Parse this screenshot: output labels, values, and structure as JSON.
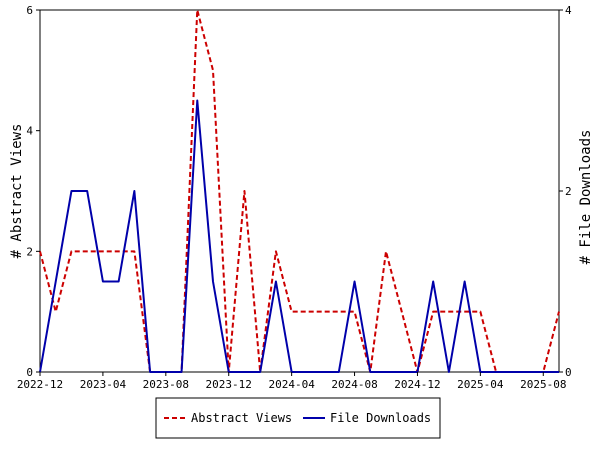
{
  "chart_data": {
    "type": "line",
    "title": "",
    "x": [
      "2022-12",
      "2023-01",
      "2023-02",
      "2023-03",
      "2023-04",
      "2023-05",
      "2023-06",
      "2023-07",
      "2023-08",
      "2023-09",
      "2023-10",
      "2023-11",
      "2023-12",
      "2024-01",
      "2024-02",
      "2024-03",
      "2024-04",
      "2024-05",
      "2024-06",
      "2024-07",
      "2024-08",
      "2024-09",
      "2024-10",
      "2024-11",
      "2024-12",
      "2025-01",
      "2025-02",
      "2025-03",
      "2025-04",
      "2025-05",
      "2025-06",
      "2025-07",
      "2025-08",
      "2025-09"
    ],
    "x_tick_labels": [
      "2022-12",
      "2023-04",
      "2023-08",
      "2023-12",
      "2024-04",
      "2024-08",
      "2024-12",
      "2025-04",
      "2025-08"
    ],
    "ylabel_left": "# Abstract Views",
    "ylabel_right": "# File Downloads",
    "ylim_left": [
      0,
      6
    ],
    "ylim_right": [
      0,
      4
    ],
    "yticks_left": [
      0,
      2,
      4,
      6
    ],
    "yticks_right": [
      0,
      2,
      4
    ],
    "grid": false,
    "legend_position": "bottom-center",
    "series": [
      {
        "name": "Abstract Views",
        "axis": "left",
        "color": "#cc0000",
        "style": "dashed",
        "values": [
          2,
          1,
          2,
          2,
          2,
          2,
          2,
          0,
          0,
          0,
          6,
          5,
          0,
          3,
          0,
          2,
          1,
          1,
          1,
          1,
          1,
          0,
          2,
          1,
          0,
          1,
          1,
          1,
          1,
          0,
          0,
          0,
          0,
          1
        ]
      },
      {
        "name": "File Downloads",
        "axis": "right",
        "color": "#0000aa",
        "style": "solid",
        "values": [
          0,
          1,
          2,
          2,
          1,
          1,
          2,
          0,
          0,
          0,
          3,
          1,
          0,
          0,
          0,
          1,
          0,
          0,
          0,
          0,
          1,
          0,
          0,
          0,
          0,
          1,
          0,
          1,
          0,
          0,
          0,
          0,
          0,
          0
        ]
      }
    ]
  }
}
